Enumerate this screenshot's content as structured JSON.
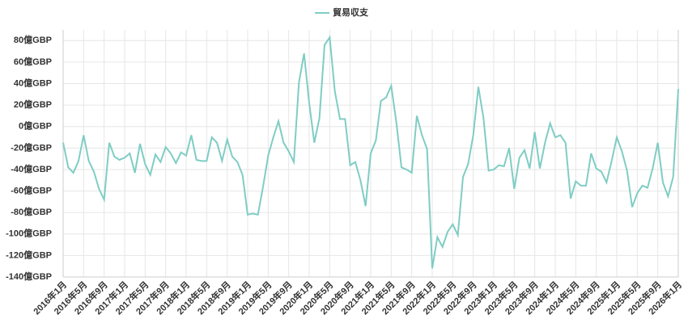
{
  "chart_data": {
    "type": "line",
    "categories": [
      "2016年1月",
      null,
      null,
      null,
      "2016年5月",
      null,
      null,
      null,
      "2016年9月",
      null,
      null,
      null,
      "2017年1月",
      null,
      null,
      null,
      "2017年5月",
      null,
      null,
      null,
      "2017年9月",
      null,
      null,
      null,
      "2018年1月",
      null,
      null,
      null,
      "2018年5月",
      null,
      null,
      null,
      "2018年9月",
      null,
      null,
      null,
      "2019年1月",
      null,
      null,
      null,
      "2019年5月",
      null,
      null,
      null,
      "2019年9月",
      null,
      null,
      null,
      "2020年1月",
      null,
      null,
      null,
      "2020年5月",
      null,
      null,
      null,
      "2020年9月",
      null,
      null,
      null,
      "2021年1月",
      null,
      null,
      null,
      "2021年5月",
      null,
      null,
      null,
      "2021年9月",
      null,
      null,
      null,
      "2022年1月",
      null,
      null,
      null,
      "2022年5月",
      null,
      null,
      null,
      "2022年9月",
      null,
      null,
      null,
      "2023年1月",
      null,
      null,
      null,
      "2023年5月",
      null,
      null,
      null,
      "2023年9月",
      null,
      null,
      null,
      "2024年1月",
      null,
      null,
      null,
      "2024年5月",
      null,
      null,
      null,
      "2024年9月",
      null,
      null,
      null,
      "2025年1月",
      null,
      null,
      null,
      "2025年5月",
      null,
      null,
      null,
      "2025年9月",
      null,
      null,
      null,
      "2026年1月"
    ],
    "series": [
      {
        "name": "貿易収支",
        "color": "#7fcdc4",
        "values": [
          -15,
          -38,
          -43,
          -32,
          -8,
          -32,
          -42,
          -58,
          -68,
          -15,
          -28,
          -31,
          -29,
          -25,
          -43,
          -16,
          -35,
          -45,
          -26,
          -33,
          -19,
          -25,
          -34,
          -24,
          -27,
          -8,
          -31,
          -32,
          -32,
          -10,
          -15,
          -32,
          -12,
          -28,
          -33,
          -45,
          -82,
          -81,
          -82,
          -56,
          -27,
          -10,
          5,
          -15,
          -23,
          -33,
          41,
          68,
          22,
          -15,
          8,
          76,
          83,
          33,
          7,
          7,
          -36,
          -33,
          -50,
          -74,
          -25,
          -13,
          24,
          27,
          38,
          4,
          -38,
          -40,
          -43,
          10,
          -8,
          -21,
          -132,
          -103,
          -112,
          -98,
          -91,
          -101,
          -47,
          -35,
          -8,
          37,
          8,
          -41,
          -40,
          -36,
          -37,
          -20,
          -58,
          -29,
          -22,
          -39,
          -5,
          -39,
          -15,
          3,
          -10,
          -8,
          -15,
          -67,
          -51,
          -55,
          -55,
          -25,
          -39,
          -42,
          -52,
          -32,
          -10,
          -23,
          -41,
          -75,
          -62,
          -55,
          -57,
          -39,
          -15,
          -52,
          -65,
          -47,
          35
        ]
      }
    ],
    "ylim": [
      -140,
      90
    ],
    "yticks": [
      {
        "value": -140,
        "label": "-140億GBP"
      },
      {
        "value": -120,
        "label": "-120億GBP"
      },
      {
        "value": -100,
        "label": "-100億GBP"
      },
      {
        "value": -80,
        "label": "-80億GBP"
      },
      {
        "value": -60,
        "label": "-60億GBP"
      },
      {
        "value": -40,
        "label": "-40億GBP"
      },
      {
        "value": -20,
        "label": "-20億GBP"
      },
      {
        "value": 0,
        "label": "0億GBP"
      },
      {
        "value": 20,
        "label": "20億GBP"
      },
      {
        "value": 40,
        "label": "40億GBP"
      },
      {
        "value": 60,
        "label": "60億GBP"
      },
      {
        "value": 80,
        "label": "80億GBP"
      }
    ],
    "grid": true,
    "legend": "top"
  }
}
